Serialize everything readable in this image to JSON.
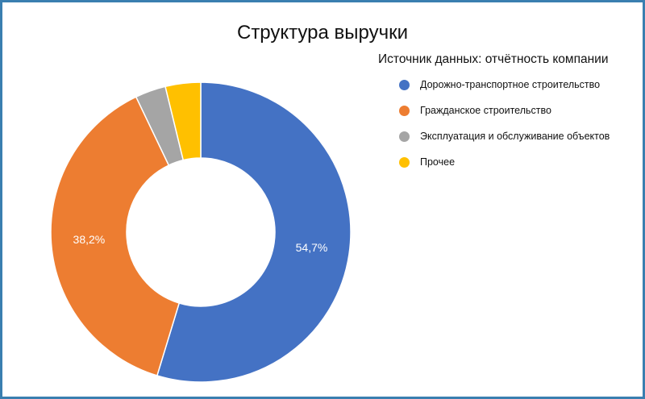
{
  "chart_data": {
    "type": "pie",
    "title": "Структура выручки",
    "legend_title": "Источник данных: отчётность компании",
    "legend_position": "right",
    "donut": true,
    "series": [
      {
        "name": "Дорожно-транспортное строительство",
        "value": 54.7,
        "label": "54,7%",
        "show_label": true,
        "color": "#4472c4"
      },
      {
        "name": "Гражданское строительство",
        "value": 38.2,
        "label": "38,2%",
        "show_label": true,
        "color": "#ed7d31"
      },
      {
        "name": "Эксплуатация и обслуживание объектов",
        "value": 3.3,
        "label": "",
        "show_label": false,
        "color": "#a5a5a5"
      },
      {
        "name": "Прочее",
        "value": 3.8,
        "label": "",
        "show_label": false,
        "color": "#ffc000"
      }
    ]
  }
}
